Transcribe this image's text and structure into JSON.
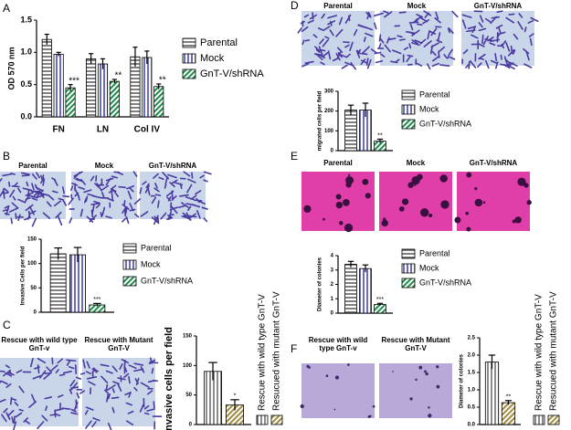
{
  "chart_data": [
    {
      "type": "bar",
      "panel": "A",
      "ylabel": "OD 570 nm",
      "categories": [
        "FN",
        "LN",
        "Col IV"
      ],
      "ylim": [
        0,
        1.5
      ],
      "yticks": [
        {
          "value": 0,
          "label": "0.0"
        },
        {
          "value": 0.5,
          "label": "0.5"
        },
        {
          "value": 1,
          "label": "1.0"
        },
        {
          "value": 1.5,
          "label": "1.5"
        }
      ],
      "legend": "right",
      "series": [
        {
          "name": "Parental",
          "color": "#555555",
          "pattern": "horizontal",
          "values": [
            1.2,
            0.9,
            0.93
          ],
          "errors": [
            0.08,
            0.08,
            0.15
          ]
        },
        {
          "name": "Mock",
          "color": "#3a3aa8",
          "pattern": "vertical",
          "values": [
            0.97,
            0.82,
            0.92
          ],
          "errors": [
            0.03,
            0.08,
            0.1
          ]
        },
        {
          "name": "GnT-V/shRNA",
          "color": "#1e8a4a",
          "pattern": "diagonal",
          "values": [
            0.45,
            0.55,
            0.47
          ],
          "errors": [
            0.05,
            0.03,
            0.04
          ],
          "significance": [
            "***",
            "**",
            "**"
          ]
        }
      ]
    },
    {
      "type": "bar",
      "panel": "B",
      "ylabel": "Invasive Cells per field",
      "image_labels": [
        "Parental",
        "Mock",
        "GnT-V/shRNA"
      ],
      "categories": [
        null
      ],
      "ylim": [
        0,
        150
      ],
      "yticks": [
        0,
        50,
        100,
        150
      ],
      "legend": "right",
      "series": [
        {
          "name": "Parental",
          "color": "#555555",
          "pattern": "horizontal",
          "values": [
            120
          ],
          "errors": [
            12
          ]
        },
        {
          "name": "Mock",
          "color": "#3a3aa8",
          "pattern": "vertical",
          "values": [
            118
          ],
          "errors": [
            15
          ]
        },
        {
          "name": "GnT-V/shRNA",
          "color": "#1e8a4a",
          "pattern": "diagonal",
          "values": [
            15
          ],
          "errors": [
            3
          ],
          "significance": [
            "***"
          ]
        }
      ]
    },
    {
      "type": "bar",
      "panel": "C",
      "ylabel": "Invasive cells per field",
      "image_labels": [
        "Rescue with wild type GnT-v",
        "Rescue with Mutant GnT-V"
      ],
      "categories": [
        null
      ],
      "ylim": [
        0,
        150
      ],
      "yticks": [
        0,
        50,
        100,
        150
      ],
      "legend": "rotated",
      "series": [
        {
          "name": "Rescue with wild type GnT-V",
          "color": "#666666",
          "pattern": "vertical",
          "values": [
            90
          ],
          "errors": [
            15
          ]
        },
        {
          "name": "Resucued with mutant GnT-V",
          "color": "#a08a40",
          "pattern": "diagonal",
          "values": [
            33
          ],
          "errors": [
            9
          ],
          "significance": [
            "*"
          ]
        }
      ]
    },
    {
      "type": "bar",
      "panel": "D",
      "ylabel": "migrated cells per field",
      "image_labels": [
        "Parental",
        "Mock",
        "GnT-V/shRNA"
      ],
      "categories": [
        null
      ],
      "ylim": [
        0,
        300
      ],
      "yticks": [
        0,
        100,
        200,
        300
      ],
      "legend": "right",
      "series": [
        {
          "name": "Parental",
          "color": "#555555",
          "pattern": "horizontal",
          "values": [
            205
          ],
          "errors": [
            25
          ]
        },
        {
          "name": "Mock",
          "color": "#3a3aa8",
          "pattern": "vertical",
          "values": [
            205
          ],
          "errors": [
            35
          ]
        },
        {
          "name": "GnT-V/shRNA",
          "color": "#1e8a4a",
          "pattern": "diagonal",
          "values": [
            48
          ],
          "errors": [
            10
          ],
          "significance": [
            "**"
          ]
        }
      ]
    },
    {
      "type": "bar",
      "panel": "E",
      "ylabel": "Diameter of colonies",
      "image_labels": [
        "Parental",
        "Mock",
        "GnT-V/shRNA"
      ],
      "categories": [
        null
      ],
      "ylim": [
        0,
        4
      ],
      "yticks": [
        0,
        1,
        2,
        3,
        4
      ],
      "legend": "right",
      "series": [
        {
          "name": "Parental",
          "color": "#555555",
          "pattern": "horizontal",
          "values": [
            3.4
          ],
          "errors": [
            0.2
          ]
        },
        {
          "name": "Mock",
          "color": "#3a3aa8",
          "pattern": "vertical",
          "values": [
            3.1
          ],
          "errors": [
            0.25
          ]
        },
        {
          "name": "GnT-V/shRNA",
          "color": "#1e8a4a",
          "pattern": "diagonal",
          "values": [
            0.6
          ],
          "errors": [
            0.08
          ],
          "significance": [
            "***"
          ]
        }
      ]
    },
    {
      "type": "bar",
      "panel": "F",
      "ylabel": "Diameter of colonies",
      "image_labels": [
        "Rescue with wild type GnT-v",
        "Rescue with Mutant GnT-V"
      ],
      "categories": [
        null
      ],
      "ylim": [
        0,
        2.5
      ],
      "yticks": [
        {
          "value": 0,
          "label": "0.0"
        },
        {
          "value": 0.5,
          "label": "0.5"
        },
        {
          "value": 1,
          "label": "1.0"
        },
        {
          "value": 1.5,
          "label": "1.5"
        },
        {
          "value": 2,
          "label": "2.0"
        },
        {
          "value": 2.5,
          "label": "2.5"
        }
      ],
      "legend": "rotated",
      "series": [
        {
          "name": "Rescue with wild type GnT-V",
          "color": "#666666",
          "pattern": "vertical",
          "values": [
            1.8
          ],
          "errors": [
            0.2
          ]
        },
        {
          "name": "Resucued with mutant GnT-V",
          "color": "#a08a40",
          "pattern": "diagonal",
          "values": [
            0.63
          ],
          "errors": [
            0.06
          ],
          "significance": [
            "**"
          ]
        }
      ]
    }
  ]
}
